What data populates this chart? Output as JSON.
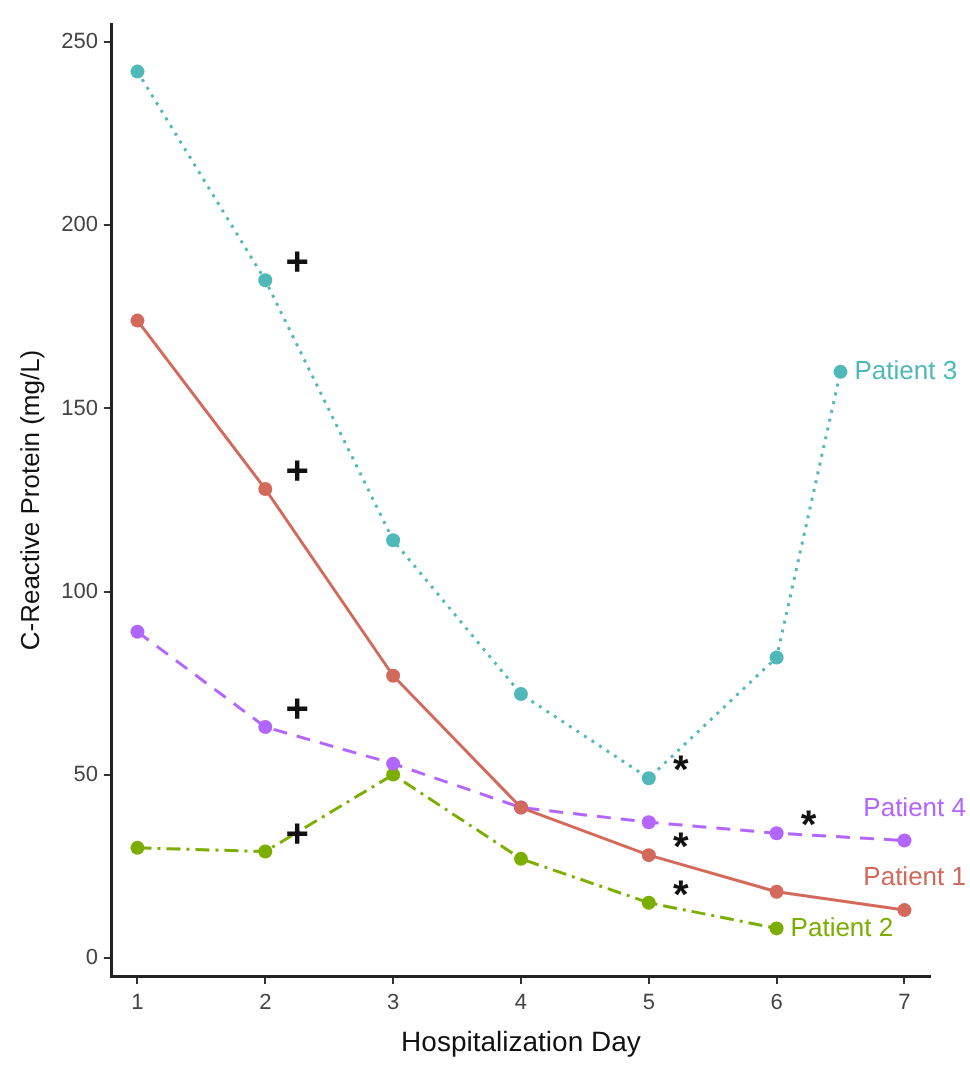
{
  "chart_data": {
    "type": "line",
    "xlabel": "Hospitalization Day",
    "ylabel": "C-Reactive Protein (mg/L)",
    "xlim": [
      0.8,
      7.2
    ],
    "xticks": [
      1,
      2,
      3,
      4,
      5,
      6,
      7
    ],
    "ylim": [
      -5,
      255
    ],
    "yticks": [
      0,
      50,
      100,
      150,
      200,
      250
    ],
    "grid": false,
    "legend": false,
    "marker": "circle",
    "series": [
      {
        "name": "Patient 3",
        "color": "#4fb8b8",
        "line_style": "dotted",
        "x": [
          1,
          2,
          3,
          4,
          5,
          6,
          6.5
        ],
        "values": [
          242,
          185,
          114,
          72,
          49,
          82,
          160
        ]
      },
      {
        "name": "Patient 1",
        "color": "#d2695a",
        "line_style": "solid",
        "x": [
          1,
          2,
          3,
          4,
          5,
          6,
          7
        ],
        "values": [
          174,
          128,
          77,
          41,
          28,
          18,
          13
        ]
      },
      {
        "name": "Patient 4",
        "color": "#b266ff",
        "line_style": "dashed",
        "x": [
          1,
          2,
          3,
          4,
          5,
          6,
          7
        ],
        "values": [
          89,
          63,
          53,
          41,
          37,
          34,
          32
        ]
      },
      {
        "name": "Patient 2",
        "color": "#7cae00",
        "line_style": "dashdot",
        "x": [
          1,
          2,
          3,
          4,
          5,
          6
        ],
        "values": [
          30,
          29,
          50,
          27,
          15,
          8
        ]
      }
    ],
    "annotations": [
      {
        "text": "+",
        "x": 2,
        "y": 185
      },
      {
        "text": "+",
        "x": 2,
        "y": 128
      },
      {
        "text": "+",
        "x": 2,
        "y": 63
      },
      {
        "text": "+",
        "x": 2,
        "y": 29
      },
      {
        "text": "*",
        "x": 5,
        "y": 49
      },
      {
        "text": "*",
        "x": 6,
        "y": 34
      },
      {
        "text": "*",
        "x": 5,
        "y": 28
      },
      {
        "text": "*",
        "x": 5,
        "y": 15
      }
    ]
  }
}
